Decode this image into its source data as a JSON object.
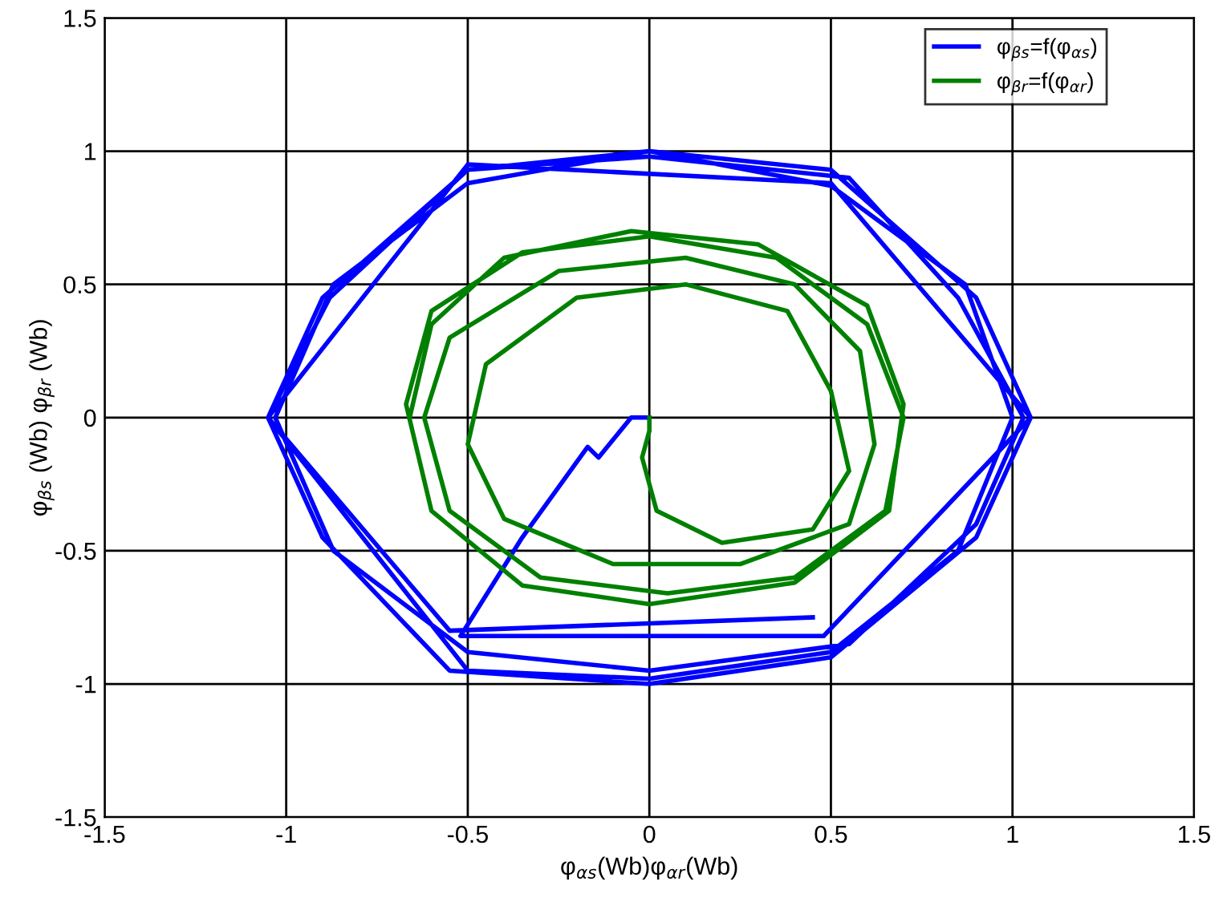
{
  "chart_data": {
    "type": "line",
    "xlabel": "φ$_{αs}$(Wb)φ$_{αr}$(Wb)",
    "ylabel": "φ$_{βs}$ (Wb) φ$_{βr}$ (Wb)",
    "series": [
      {
        "name": "φ$_{βs}$=f(φ$_{αs}$)",
        "color": "#0000ff",
        "x": [
          0,
          -0.05,
          -0.14,
          -0.17,
          -0.35,
          -0.52,
          0.48,
          1.05,
          0.5,
          -0.5,
          -1.05,
          -0.5,
          0,
          0.5,
          0.85,
          1.0,
          0.87,
          0.5,
          0,
          -0.5,
          -0.87,
          -1.03,
          -0.87,
          -0.5,
          0,
          0.55,
          0.9,
          1.03,
          0.85,
          0.55,
          0,
          -0.5,
          -0.88,
          -1.05,
          -0.9,
          -0.55,
          0,
          0.5,
          0.9,
          1.05,
          0.9,
          0.5,
          0,
          -0.5,
          -0.9,
          -1.05,
          -0.55,
          0.45
        ],
        "values": [
          0,
          0,
          -0.15,
          -0.11,
          -0.45,
          -0.82,
          -0.82,
          0,
          0.88,
          0.95,
          0,
          -0.95,
          -0.98,
          -0.88,
          -0.5,
          0,
          0.5,
          0.87,
          1.0,
          0.88,
          0.5,
          0,
          -0.5,
          -0.88,
          -0.95,
          -0.85,
          -0.4,
          0,
          0.45,
          0.9,
          0.98,
          0.93,
          0.45,
          0,
          -0.45,
          -0.95,
          -1.0,
          -0.9,
          -0.45,
          0,
          0.45,
          0.93,
          1.0,
          0.93,
          0.45,
          0,
          -0.8,
          -0.75
        ]
      },
      {
        "name": "φ$_{βr}$=f(φ$_{αr}$)",
        "color": "#008000",
        "x": [
          0,
          0,
          -0.02,
          0.02,
          0.2,
          0.45,
          0.55,
          0.5,
          0.38,
          0.1,
          -0.2,
          -0.45,
          -0.5,
          -0.4,
          -0.1,
          0.25,
          0.55,
          0.62,
          0.58,
          0.4,
          0.1,
          -0.25,
          -0.55,
          -0.62,
          -0.55,
          -0.3,
          0.05,
          0.4,
          0.65,
          0.7,
          0.6,
          0.35,
          0,
          -0.35,
          -0.6,
          -0.67,
          -0.6,
          -0.35,
          0,
          0.4,
          0.66,
          0.7,
          0.6,
          0.3,
          -0.05,
          -0.4,
          -0.6,
          -0.66
        ],
        "values": [
          0,
          -0.05,
          -0.15,
          -0.35,
          -0.47,
          -0.42,
          -0.2,
          0.1,
          0.4,
          0.5,
          0.45,
          0.2,
          -0.1,
          -0.38,
          -0.55,
          -0.55,
          -0.4,
          -0.1,
          0.25,
          0.5,
          0.6,
          0.55,
          0.3,
          0,
          -0.35,
          -0.6,
          -0.66,
          -0.6,
          -0.35,
          0,
          0.35,
          0.6,
          0.68,
          0.62,
          0.4,
          0.05,
          -0.35,
          -0.63,
          -0.7,
          -0.62,
          -0.35,
          0.05,
          0.42,
          0.65,
          0.7,
          0.6,
          0.35,
          0
        ]
      }
    ],
    "xlim": [
      -1.5,
      1.5
    ],
    "ylim": [
      -1.5,
      1.5
    ],
    "xticks": [
      -1.5,
      -1,
      -0.5,
      0,
      0.5,
      1,
      1.5
    ],
    "yticks": [
      -1.5,
      -1,
      -0.5,
      0,
      0.5,
      1,
      1.5
    ],
    "grid": true,
    "legend": "top right"
  }
}
